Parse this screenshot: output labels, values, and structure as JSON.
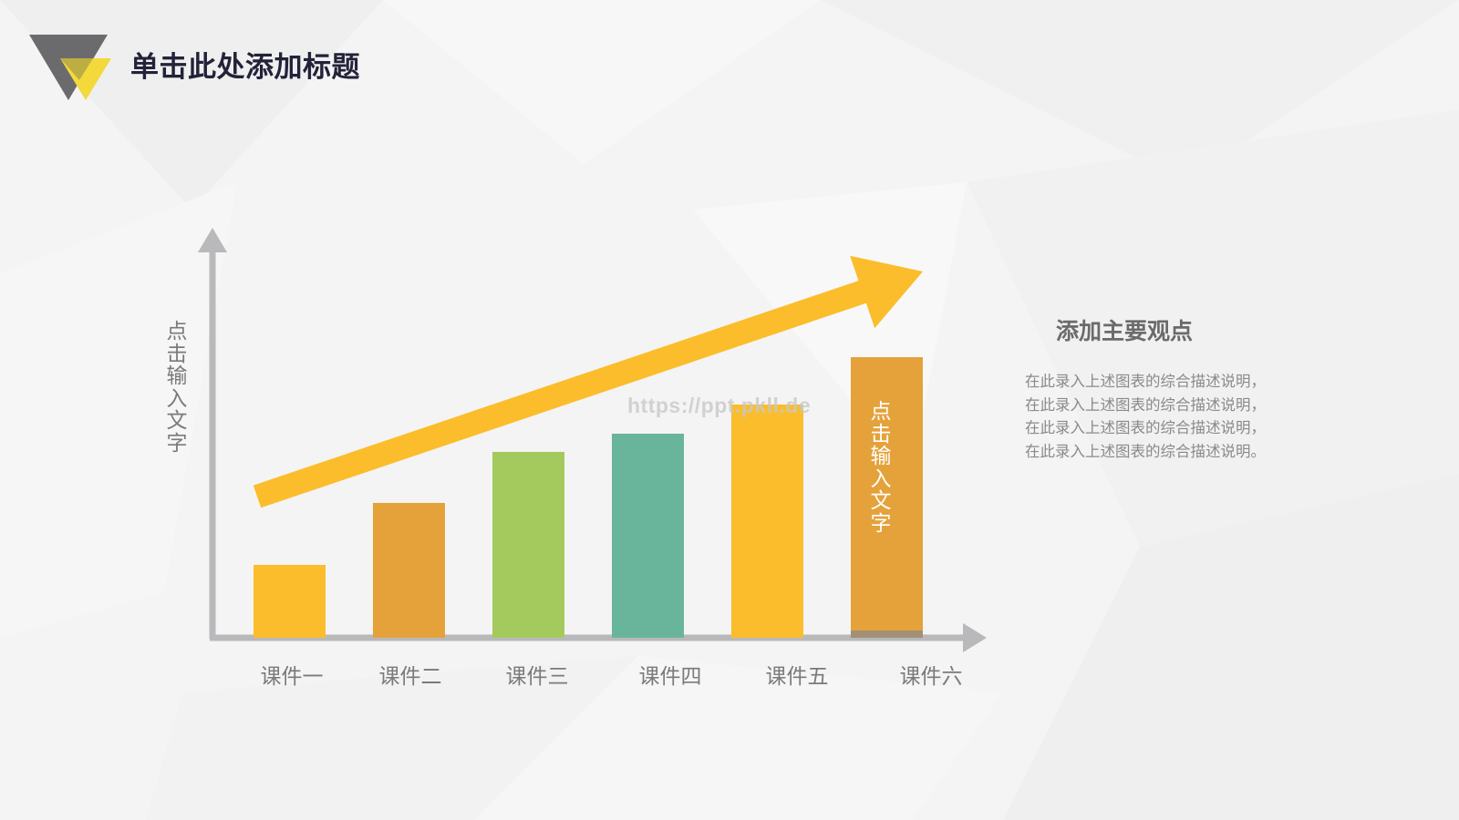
{
  "header": {
    "title": "单击此处添加标题"
  },
  "chart_data": {
    "type": "bar",
    "categories": [
      "课件一",
      "课件二",
      "课件三",
      "课件四",
      "课件五",
      "课件六"
    ],
    "values": [
      2.0,
      3.7,
      5.1,
      5.6,
      6.4,
      7.7
    ],
    "title": "",
    "xlabel": "",
    "ylabel": "点击输入文字",
    "ylim": [
      0,
      11
    ],
    "bar_colors": [
      "#fbbd2b",
      "#e5a23a",
      "#a4ca5d",
      "#69b59b",
      "#fbbd2b",
      "#e5a23a"
    ],
    "bar_annotation": {
      "category": "课件六",
      "text": "点击输入文字"
    },
    "trend_arrow_color": "#fbbd2b",
    "grid": false
  },
  "watermark": "https://ppt.pkll.de",
  "side_panel": {
    "title": "添加主要观点",
    "lines": [
      "在此录入上述图表的综合描述说明，",
      "在此录入上述图表的综合描述说明，",
      "在此录入上述图表的综合描述说明，",
      "在此录入上述图表的综合描述说明。"
    ]
  },
  "colors": {
    "title": "#22223a",
    "axis": "#b9b9bb",
    "logo_gray": "#6b6b6d",
    "logo_yellow": "#f3d93a"
  }
}
